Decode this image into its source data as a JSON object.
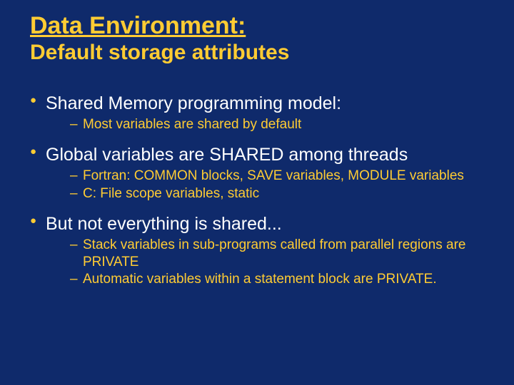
{
  "colors": {
    "background": "#0f2a6b",
    "heading": "#ffcc33",
    "body_text": "#ffffff",
    "sub_text": "#ffcc33",
    "bullet": "#ffcc33"
  },
  "typography": {
    "title_fontsize": 34,
    "subtitle_fontsize": 30,
    "l1_fontsize": 25,
    "l2_fontsize": 19,
    "font_family": "Arial"
  },
  "title": "Data Environment:",
  "subtitle": "Default storage attributes",
  "items": [
    {
      "text": "Shared Memory programming model:",
      "children": [
        "Most variables are shared by default"
      ]
    },
    {
      "text": "Global variables are SHARED among threads",
      "children": [
        "Fortran: COMMON blocks, SAVE variables, MODULE variables",
        "C: File scope variables, static"
      ]
    },
    {
      "text": "But not everything is shared...",
      "children": [
        "Stack variables in sub-programs called from parallel regions are PRIVATE",
        "Automatic variables within a statement block are PRIVATE."
      ]
    }
  ]
}
